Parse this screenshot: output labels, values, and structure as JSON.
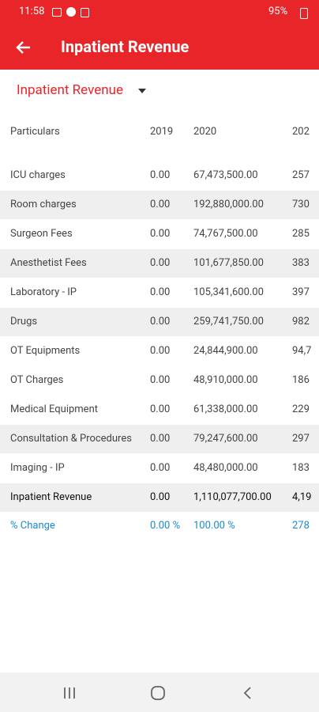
{
  "status_bar": {
    "time": "11:58",
    "battery": "95%"
  },
  "header": {
    "title": "Inpatient Revenue"
  },
  "selector": {
    "label": "Inpatient Revenue"
  },
  "table": {
    "columns": [
      "Particulars",
      "2019",
      "2020",
      "202"
    ],
    "rows": [
      [
        "ICU charges",
        "0.00",
        "67,473,500.00",
        "257"
      ],
      [
        "Room charges",
        "0.00",
        "192,880,000.00",
        "730"
      ],
      [
        "Surgeon Fees",
        "0.00",
        "74,767,500.00",
        "285"
      ],
      [
        "Anesthetist Fees",
        "0.00",
        "101,677,850.00",
        "383"
      ],
      [
        "Laboratory - IP",
        "0.00",
        "105,341,600.00",
        "397"
      ],
      [
        "Drugs",
        "0.00",
        "259,741,750.00",
        "982"
      ],
      [
        "OT Equipments",
        "0.00",
        "24,844,900.00",
        "94,7"
      ],
      [
        "OT Charges",
        "0.00",
        "48,910,000.00",
        "186"
      ],
      [
        "Medical Equipment",
        "0.00",
        "61,338,000.00",
        "229"
      ],
      [
        "Consultation & Procedures",
        "0.00",
        "79,247,600.00",
        "297"
      ],
      [
        "Imaging - IP",
        "0.00",
        "48,480,000.00",
        "183"
      ]
    ],
    "total": [
      "Inpatient Revenue",
      "0.00",
      "1,110,077,700.00",
      "4,19"
    ],
    "change": [
      "% Change",
      "0.00 %",
      "100.00 %",
      "278"
    ]
  }
}
